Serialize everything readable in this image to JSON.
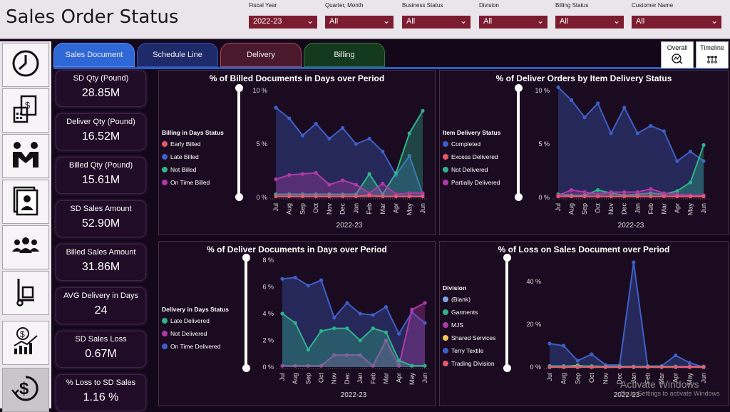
{
  "app": {
    "title": "Sales Order Status"
  },
  "filters": [
    {
      "label": "Fiscal Year",
      "value": "2022-23"
    },
    {
      "label": "Quarter, Month",
      "value": "All"
    },
    {
      "label": "Business Status",
      "value": "All"
    },
    {
      "label": "Division",
      "value": "All"
    },
    {
      "label": "Billing Status",
      "value": "All"
    },
    {
      "label": "Customer Name",
      "value": "All"
    }
  ],
  "sidebar": {
    "icons": [
      "clock-icon",
      "invoice-calculator-icon",
      "handshake-icon",
      "contacts-icon",
      "team-icon",
      "hand-truck-icon",
      "money-growth-icon",
      "dollar-cycle-icon"
    ]
  },
  "tabs": [
    {
      "label": "Sales Document",
      "color": "#2f67d6"
    },
    {
      "label": "Schedule Line",
      "color": "#1e2a6a"
    },
    {
      "label": "Delivery",
      "color": "#4a1a2c"
    },
    {
      "label": "Billing",
      "color": "#133a1c"
    }
  ],
  "right_buttons": [
    {
      "label": "Overall",
      "icon": "chart-search-icon"
    },
    {
      "label": "Timeline",
      "icon": "timeline-icon"
    }
  ],
  "kpis": [
    {
      "label": "SD Qty (Pound)",
      "value": "28.85M"
    },
    {
      "label": "Deliver Qty (Pound)",
      "value": "16.52M"
    },
    {
      "label": "Billed Qty (Pound)",
      "value": "15.61M"
    },
    {
      "label": "SD Sales Amount",
      "value": "52.90M"
    },
    {
      "label": "Billed Sales Amount",
      "value": "31.86M"
    },
    {
      "label": "AVG Delivery in Days",
      "value": "24"
    },
    {
      "label": "SD Sales Loss",
      "value": "0.67M"
    },
    {
      "label": "% Loss to SD Sales",
      "value": "1.16 %"
    }
  ],
  "chart_data": [
    {
      "type": "area",
      "title": "% of Billed Documents in Days over Period",
      "xlabel": "2022-23",
      "legend_title": "Billing in Days Status",
      "categories": [
        "Jul",
        "Aug",
        "Sep",
        "Oct",
        "Nov",
        "Dec",
        "Jan",
        "Feb",
        "Mar",
        "Apr",
        "May",
        "Jun"
      ],
      "yticks": [
        "0 %",
        "5 %",
        "10 %"
      ],
      "ylim": [
        0,
        10
      ],
      "series": [
        {
          "name": "Early Billed",
          "color": "#e8586e",
          "values": [
            0.1,
            0.1,
            0.1,
            0.1,
            0.1,
            0.1,
            0.1,
            0.2,
            0.1,
            0.1,
            0.1,
            0.1
          ]
        },
        {
          "name": "Late Billed",
          "color": "#3d5fc7",
          "values": [
            8.4,
            7.4,
            5.8,
            6.9,
            5.5,
            6.5,
            5.0,
            5.5,
            4.3,
            2.1,
            3.9,
            0.3
          ]
        },
        {
          "name": "Not Billed",
          "color": "#2fb38a",
          "values": [
            0.3,
            0.3,
            0.3,
            0.3,
            0.3,
            0.3,
            0.3,
            2.2,
            0.3,
            2.3,
            6.0,
            8.1
          ]
        },
        {
          "name": "On Time Billed",
          "color": "#b03aa7",
          "values": [
            1.7,
            2.1,
            2.2,
            2.3,
            1.2,
            1.6,
            1.2,
            0.4,
            1.3,
            0.3,
            0.4,
            0.4
          ]
        }
      ]
    },
    {
      "type": "area",
      "title": "% of Deliver Orders by Item Delivery Status",
      "xlabel": "2022-23",
      "legend_title": "Item Delivery Status",
      "categories": [
        "Jul",
        "Aug",
        "Sep",
        "Oct",
        "Nov",
        "Dec",
        "Jan",
        "Feb",
        "Mar",
        "Apr",
        "May",
        "Jun"
      ],
      "yticks": [
        "0 %",
        "5 %",
        "10 %"
      ],
      "ylim": [
        0,
        10
      ],
      "series": [
        {
          "name": "Completed",
          "color": "#3d5fc7",
          "values": [
            10.3,
            9.1,
            7.5,
            8.8,
            6.0,
            8.4,
            6.0,
            6.7,
            6.2,
            3.4,
            4.3,
            3.4
          ]
        },
        {
          "name": "Excess Delivered",
          "color": "#e8586e",
          "values": [
            0.1,
            0.1,
            0.1,
            0.1,
            0.1,
            0.1,
            0.1,
            0.1,
            0.1,
            0.1,
            0.1,
            0.1
          ]
        },
        {
          "name": "Not Delivered",
          "color": "#2fb38a",
          "values": [
            0.3,
            0.2,
            0.2,
            0.7,
            0.4,
            0.2,
            0.3,
            0.4,
            0.3,
            0.6,
            1.4,
            4.9
          ]
        },
        {
          "name": "Partially Delivered",
          "color": "#b03aa7",
          "values": [
            0.2,
            0.7,
            0.5,
            0.3,
            0.5,
            0.5,
            0.5,
            0.8,
            0.4,
            0.3,
            0.2,
            0.2
          ]
        }
      ]
    },
    {
      "type": "area",
      "title": "% of Deliver Documents in Days over Period",
      "xlabel": "2022-23",
      "legend_title": "Delivery in Days Status",
      "categories": [
        "Jul",
        "Aug",
        "Sep",
        "Oct",
        "Nov",
        "Dec",
        "Jan",
        "Feb",
        "Mar",
        "Apr",
        "May",
        "Jun"
      ],
      "yticks": [
        "0 %",
        "2 %",
        "4 %",
        "6 %",
        "8 %"
      ],
      "ylim": [
        0,
        8
      ],
      "series": [
        {
          "name": "Late Delivered",
          "color": "#2fb38a",
          "values": [
            4.0,
            3.3,
            1.3,
            2.7,
            2.9,
            2.9,
            2.0,
            2.9,
            2.6,
            0.5,
            0.1,
            0.1
          ]
        },
        {
          "name": "Not Delivered",
          "color": "#b03aa7",
          "values": [
            0.1,
            0.1,
            0.1,
            0.1,
            0.9,
            0.9,
            0.9,
            0.1,
            2.0,
            0.1,
            4.3,
            4.8
          ]
        },
        {
          "name": "On Time Delivered",
          "color": "#3d5fc7",
          "values": [
            6.6,
            6.7,
            6.1,
            6.5,
            3.7,
            4.8,
            4.0,
            3.9,
            4.5,
            2.5,
            4.1,
            3.3
          ]
        }
      ]
    },
    {
      "type": "area",
      "title": "% of Loss on Sales Document over Period",
      "xlabel": "2022-23",
      "legend_title": "Division",
      "categories": [
        "Jul",
        "Aug",
        "Sep",
        "Oct",
        "Nov",
        "Dec",
        "Jan",
        "Feb",
        "Mar",
        "Apr",
        "May",
        "Jun"
      ],
      "yticks": [
        "0 %",
        "20 %",
        "40 %"
      ],
      "ylim": [
        0,
        50
      ],
      "series": [
        {
          "name": "(Blank)",
          "color": "#7fa7e8",
          "values": [
            0,
            0,
            0,
            0,
            0,
            0,
            0,
            0,
            0,
            0,
            0,
            0
          ]
        },
        {
          "name": "Garments",
          "color": "#2fb38a",
          "values": [
            0.5,
            0.5,
            0.5,
            0.5,
            0.3,
            0.3,
            0.3,
            0.3,
            0.3,
            0.3,
            0.3,
            0.3
          ]
        },
        {
          "name": "MJS",
          "color": "#b03aa7",
          "values": [
            0,
            0,
            0,
            0,
            0,
            0,
            0,
            0,
            0,
            0,
            0.3,
            0
          ]
        },
        {
          "name": "Shared Services",
          "color": "#f2c75c",
          "values": [
            0,
            0.3,
            0.8,
            0,
            0,
            0,
            0,
            0,
            0,
            0,
            0,
            0
          ]
        },
        {
          "name": "Terry Textile",
          "color": "#3d5fc7",
          "values": [
            11,
            10,
            3,
            6,
            1,
            1,
            49,
            0.5,
            0.5,
            5.5,
            2,
            0
          ]
        },
        {
          "name": "Trading Division",
          "color": "#e8586e",
          "values": [
            0,
            0,
            0,
            0,
            0,
            0,
            0,
            0,
            0,
            0,
            0,
            0
          ]
        }
      ]
    }
  ],
  "watermark": {
    "line1": "Activate Windows",
    "line2": "Go to Settings to activate Windows"
  }
}
